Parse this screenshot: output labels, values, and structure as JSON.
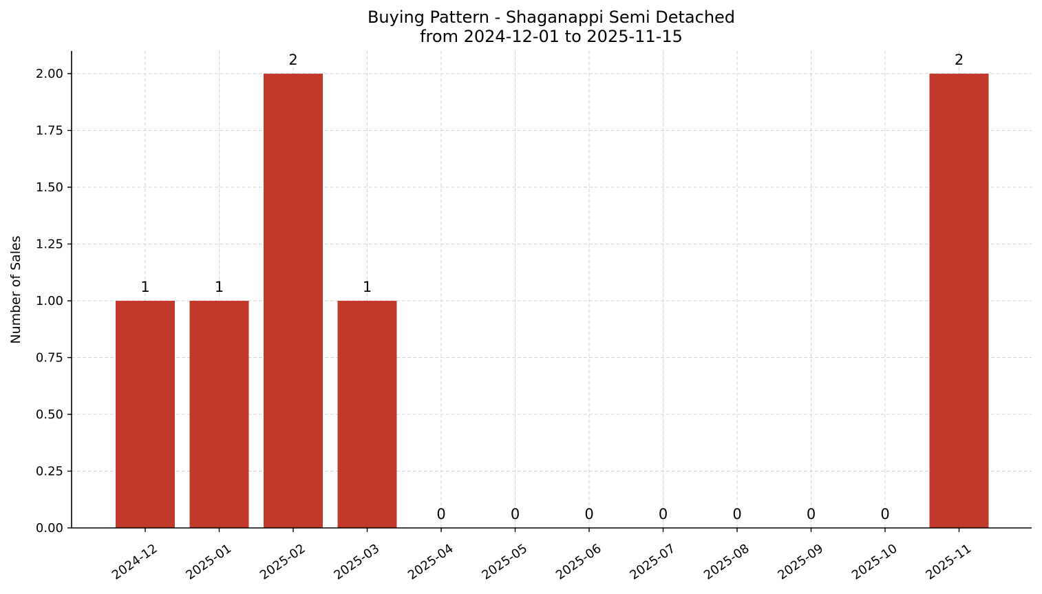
{
  "chart_data": {
    "type": "bar",
    "title": "Buying Pattern - Shaganappi Semi Detached",
    "subtitle": "from 2024-12-01 to 2025-11-15",
    "xlabel": "",
    "ylabel": "Number of Sales",
    "categories": [
      "2024-12",
      "2025-01",
      "2025-02",
      "2025-03",
      "2025-04",
      "2025-05",
      "2025-06",
      "2025-07",
      "2025-08",
      "2025-09",
      "2025-10",
      "2025-11"
    ],
    "values": [
      1,
      1,
      2,
      1,
      0,
      0,
      0,
      0,
      0,
      0,
      0,
      2
    ],
    "data_labels": [
      "1",
      "1",
      "2",
      "1",
      "0",
      "0",
      "0",
      "0",
      "0",
      "0",
      "0",
      "2"
    ],
    "ylim": [
      0,
      2.1
    ],
    "yticks": [
      0,
      0.25,
      0.5,
      0.75,
      1.0,
      1.25,
      1.5,
      1.75,
      2.0
    ],
    "ytick_labels": [
      "0.00",
      "0.25",
      "0.50",
      "0.75",
      "1.00",
      "1.25",
      "1.50",
      "1.75",
      "2.00"
    ],
    "grid": true,
    "legend": "none",
    "bar_color": "#c0392b",
    "grid_color": "#d4d4d4",
    "xtick_rotation": -35
  }
}
